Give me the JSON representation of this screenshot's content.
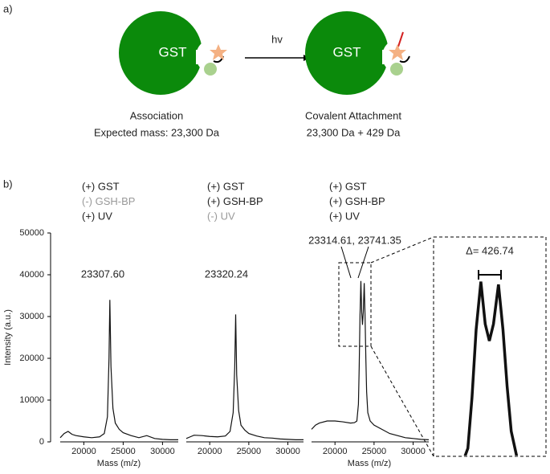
{
  "panel_a": {
    "label": "a)",
    "arrow_label": "hv",
    "left": {
      "protein": "GST",
      "caption": "Association",
      "mass": "Expected mass: 23,300 Da"
    },
    "right": {
      "protein": "GST",
      "caption": "Covalent Attachment",
      "mass": "23,300 Da + 429 Da"
    }
  },
  "panel_b": {
    "label": "b)"
  },
  "chart_data": [
    {
      "type": "line",
      "y_label": "Intensity (a.u.)",
      "x_label": "Mass (m/z)",
      "peak_label": "23307.60",
      "conditions": [
        {
          "text": "(+) GST",
          "color": "#222222"
        },
        {
          "text": "(-) GSH-BP",
          "color": "#999999"
        },
        {
          "text": "(+)  UV",
          "color": "#222222"
        }
      ],
      "xlim": [
        17000,
        32000
      ],
      "xticks": [
        20000,
        25000,
        30000
      ],
      "ylim": [
        0,
        50000
      ],
      "yticks": [
        0,
        10000,
        20000,
        30000,
        40000,
        50000
      ],
      "color": "#111111",
      "x": [
        17000,
        17500,
        18000,
        18500,
        19000,
        20000,
        21000,
        22000,
        22600,
        23000,
        23200,
        23307.6,
        23450,
        23700,
        24000,
        24500,
        25000,
        26000,
        27000,
        28000,
        29000,
        30000,
        31000,
        32000
      ],
      "values": [
        1000,
        2000,
        2500,
        1800,
        1500,
        1200,
        1000,
        1200,
        2000,
        6000,
        20000,
        34000,
        18000,
        8000,
        4500,
        3000,
        2200,
        1500,
        1000,
        1500,
        800,
        600,
        500,
        500
      ]
    },
    {
      "type": "line",
      "peak_label": "23320.24",
      "conditions": [
        {
          "text": "(+) GST",
          "color": "#222222"
        },
        {
          "text": "(+) GSH-BP",
          "color": "#222222"
        },
        {
          "text": "(-) UV",
          "color": "#999999"
        }
      ],
      "xlim": [
        17000,
        32000
      ],
      "xticks": [
        20000,
        25000,
        30000
      ],
      "ylim": [
        0,
        50000
      ],
      "color": "#111111",
      "x": [
        17000,
        17500,
        18000,
        19000,
        20000,
        21000,
        22000,
        22600,
        23000,
        23200,
        23320.24,
        23450,
        23700,
        24000,
        24500,
        25000,
        26000,
        27000,
        28000,
        29000,
        30000,
        31000,
        32000
      ],
      "values": [
        800,
        1200,
        1600,
        1500,
        1300,
        1200,
        1400,
        2500,
        7000,
        18000,
        30500,
        16000,
        7500,
        4000,
        2800,
        2000,
        1400,
        1000,
        900,
        700,
        600,
        500,
        500
      ]
    },
    {
      "type": "line",
      "x_label": "Mass (m/z)",
      "peak_label": "23314.61, 23741.35",
      "conditions": [
        {
          "text": "(+) GST",
          "color": "#222222"
        },
        {
          "text": "(+) GSH-BP",
          "color": "#222222"
        },
        {
          "text": "(+) UV",
          "color": "#222222"
        }
      ],
      "xlim": [
        17000,
        32000
      ],
      "xticks": [
        20000,
        25000,
        30000
      ],
      "ylim": [
        0,
        50000
      ],
      "color": "#111111",
      "x": [
        17000,
        17500,
        18000,
        19000,
        20000,
        21000,
        22000,
        22500,
        22800,
        23000,
        23100,
        23200,
        23314.61,
        23420,
        23520,
        23620,
        23741.35,
        23850,
        23950,
        24050,
        24200,
        24500,
        25000,
        26000,
        27000,
        28000,
        29000,
        30000,
        31000,
        32000
      ],
      "values": [
        3000,
        4000,
        4500,
        5000,
        5000,
        4800,
        4500,
        4600,
        5000,
        9000,
        18000,
        30000,
        38500,
        31000,
        28000,
        31000,
        38000,
        30000,
        20000,
        12000,
        7000,
        5000,
        4000,
        3000,
        2000,
        1500,
        1000,
        800,
        600,
        500
      ],
      "inset": {
        "label": "Δ= 426.74",
        "xlim": [
          22850,
          24250
        ],
        "ylim": [
          8000,
          40000
        ]
      }
    }
  ]
}
